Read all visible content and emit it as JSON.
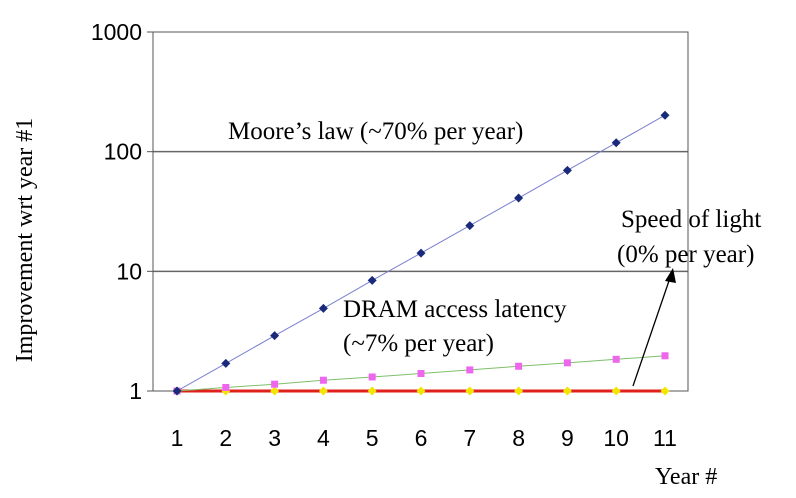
{
  "chart_data": {
    "type": "line",
    "title": "",
    "xlabel": "Year #",
    "ylabel": "Improvement wrt year #1",
    "y_scale": "log",
    "ylim": [
      1,
      1000
    ],
    "y_ticks": [
      "1",
      "10",
      "100",
      "1000"
    ],
    "x_ticks": [
      "1",
      "2",
      "3",
      "4",
      "5",
      "6",
      "7",
      "8",
      "9",
      "10",
      "11"
    ],
    "x": [
      1,
      2,
      3,
      4,
      5,
      6,
      7,
      8,
      9,
      10,
      11
    ],
    "grid": "horizontal major lines",
    "legend": "none",
    "series": [
      {
        "key": "moore",
        "color": "#1a2a7a",
        "line_color": "#7a7fd0",
        "marker": "diamond",
        "values": [
          1,
          1.7,
          2.9,
          4.9,
          8.4,
          14.2,
          24.1,
          41.0,
          69.8,
          118.6,
          201.6
        ]
      },
      {
        "key": "dram",
        "color": "#ee66ee",
        "line_color": "#7fbf6a",
        "marker": "square",
        "values": [
          1,
          1.07,
          1.14,
          1.23,
          1.31,
          1.4,
          1.5,
          1.61,
          1.72,
          1.84,
          1.97
        ]
      },
      {
        "key": "light",
        "color": "#f2e600",
        "line_color": "#e0201a",
        "marker": "diamond",
        "values": [
          1,
          1,
          1,
          1,
          1,
          1,
          1,
          1,
          1,
          1,
          1
        ]
      }
    ],
    "annotations": {
      "moore": "Moore’s law (~70% per year)",
      "dram_line1": "DRAM access latency",
      "dram_line2": "(~7% per year)",
      "light_line1": "Speed of light",
      "light_line2": "(0% per year)"
    }
  }
}
